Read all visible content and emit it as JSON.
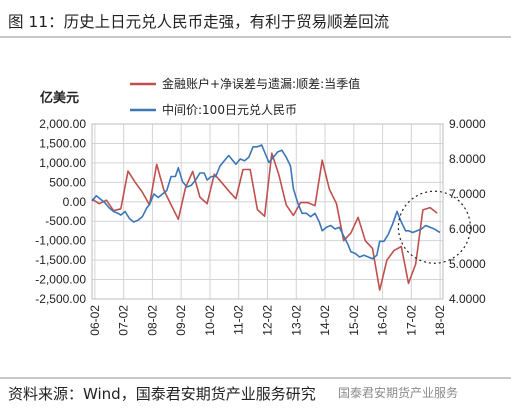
{
  "header": {
    "title": "图 11：历史上日元兑人民币走强，有利于贸易顺差回流"
  },
  "footer": {
    "source": "资料来源：Wind，国泰君安期货产业服务研究",
    "watermark": "国泰君安期货产业服务"
  },
  "colors": {
    "series_red": "#c0504d",
    "series_blue": "#3b76b7",
    "grid": "#d4d4d4"
  },
  "chart_data": {
    "type": "line",
    "y_left_unit": "亿美元",
    "legend_position": "top-center",
    "grid": true,
    "y_left": {
      "lim": [
        -2500,
        2000
      ],
      "ticks": [
        2000,
        1500,
        1000,
        500,
        0,
        -500,
        -1000,
        -1500,
        -2000,
        -2500
      ],
      "tick_labels": [
        "2,000.00",
        "1,500.00",
        "1,000.00",
        "500.00",
        "0.00",
        "-500.00",
        "-1,000.00",
        "-1,500.00",
        "-2,000.00",
        "-2,500.00"
      ]
    },
    "y_right": {
      "lim": [
        4.0,
        9.0
      ],
      "ticks": [
        9,
        8,
        7,
        6,
        5,
        4
      ],
      "tick_labels": [
        "9.0000",
        "8.0000",
        "7.0000",
        "6.0000",
        "5.0000",
        "4.0000"
      ]
    },
    "x": {
      "lim": [
        2006.0,
        2018.2
      ],
      "ticks": [
        2006.1,
        2007.1,
        2008.1,
        2009.1,
        2010.1,
        2011.1,
        2012.1,
        2013.1,
        2014.1,
        2015.1,
        2016.1,
        2017.1,
        2018.1
      ],
      "tick_labels": [
        "06-02",
        "07-02",
        "08-02",
        "09-02",
        "10-02",
        "11-02",
        "12-02",
        "13-02",
        "14-02",
        "15-02",
        "16-02",
        "17-02",
        "18-02"
      ]
    },
    "annotation": {
      "type": "dashed-circle",
      "center_x": 2017.9,
      "center_y_right": 6.05,
      "label": ""
    },
    "series": [
      {
        "name": "金融账户+净误差与遗漏:顺差:当季值",
        "axis": "left",
        "color": "#c0504d",
        "x": [
          2006.0,
          2006.25,
          2006.5,
          2006.75,
          2007.0,
          2007.25,
          2007.5,
          2007.75,
          2008.0,
          2008.25,
          2008.5,
          2008.75,
          2009.0,
          2009.25,
          2009.5,
          2009.75,
          2010.0,
          2010.25,
          2010.5,
          2010.75,
          2011.0,
          2011.25,
          2011.5,
          2011.75,
          2012.0,
          2012.25,
          2012.5,
          2012.75,
          2013.0,
          2013.25,
          2013.5,
          2013.75,
          2014.0,
          2014.25,
          2014.5,
          2014.75,
          2015.0,
          2015.25,
          2015.5,
          2015.75,
          2016.0,
          2016.25,
          2016.5,
          2016.75,
          2017.0,
          2017.25,
          2017.5,
          2017.75,
          2018.0
        ],
        "values": [
          70,
          -50,
          40,
          -230,
          -180,
          790,
          500,
          250,
          -80,
          960,
          300,
          -80,
          -450,
          360,
          780,
          120,
          -50,
          710,
          500,
          280,
          80,
          830,
          830,
          -200,
          -370,
          1250,
          680,
          -80,
          -350,
          -20,
          -20,
          -100,
          1070,
          320,
          -50,
          -1000,
          -800,
          -400,
          -1000,
          -1200,
          -2270,
          -1500,
          -1250,
          -1150,
          -2100,
          -1600,
          -210,
          -150,
          -290
        ]
      },
      {
        "name": "中间价:100日元兑人民币",
        "axis": "right",
        "color": "#3b76b7",
        "x": [
          2006.0,
          2006.15,
          2006.3,
          2006.45,
          2006.6,
          2006.75,
          2006.9,
          2007.0,
          2007.15,
          2007.3,
          2007.45,
          2007.6,
          2007.75,
          2007.9,
          2008.0,
          2008.15,
          2008.3,
          2008.45,
          2008.6,
          2008.75,
          2008.9,
          2009.0,
          2009.15,
          2009.3,
          2009.45,
          2009.6,
          2009.75,
          2009.9,
          2010.0,
          2010.15,
          2010.3,
          2010.45,
          2010.6,
          2010.75,
          2010.9,
          2011.0,
          2011.15,
          2011.3,
          2011.45,
          2011.6,
          2011.75,
          2011.9,
          2012.0,
          2012.15,
          2012.3,
          2012.45,
          2012.6,
          2012.75,
          2012.9,
          2013.0,
          2013.15,
          2013.3,
          2013.45,
          2013.6,
          2013.75,
          2013.9,
          2014.0,
          2014.15,
          2014.3,
          2014.45,
          2014.6,
          2014.75,
          2014.9,
          2015.0,
          2015.15,
          2015.3,
          2015.45,
          2015.6,
          2015.75,
          2015.9,
          2016.0,
          2016.15,
          2016.3,
          2016.45,
          2016.6,
          2016.75,
          2016.9,
          2017.0,
          2017.15,
          2017.3,
          2017.45,
          2017.6,
          2017.75,
          2017.9,
          2018.0,
          2018.1
        ],
        "values": [
          6.8,
          6.95,
          6.85,
          6.75,
          6.6,
          6.5,
          6.45,
          6.4,
          6.5,
          6.3,
          6.2,
          6.25,
          6.35,
          6.6,
          6.7,
          7.0,
          6.9,
          7.0,
          7.1,
          7.5,
          7.5,
          7.75,
          7.35,
          7.2,
          7.25,
          7.4,
          7.6,
          7.6,
          7.4,
          7.5,
          7.5,
          7.8,
          7.95,
          8.1,
          7.95,
          7.85,
          8.0,
          7.95,
          8.05,
          8.35,
          8.35,
          8.4,
          8.2,
          7.9,
          8.05,
          8.2,
          8.25,
          8.05,
          7.8,
          7.15,
          6.75,
          6.45,
          6.45,
          6.35,
          6.45,
          6.2,
          5.95,
          6.05,
          6.1,
          6.0,
          6.05,
          5.8,
          5.55,
          5.35,
          5.3,
          5.2,
          5.25,
          5.2,
          5.15,
          5.25,
          5.65,
          5.65,
          5.85,
          6.15,
          6.5,
          6.2,
          5.95,
          5.95,
          5.9,
          5.95,
          6.0,
          6.1,
          6.05,
          6.0,
          5.95,
          5.9
        ]
      }
    ]
  }
}
